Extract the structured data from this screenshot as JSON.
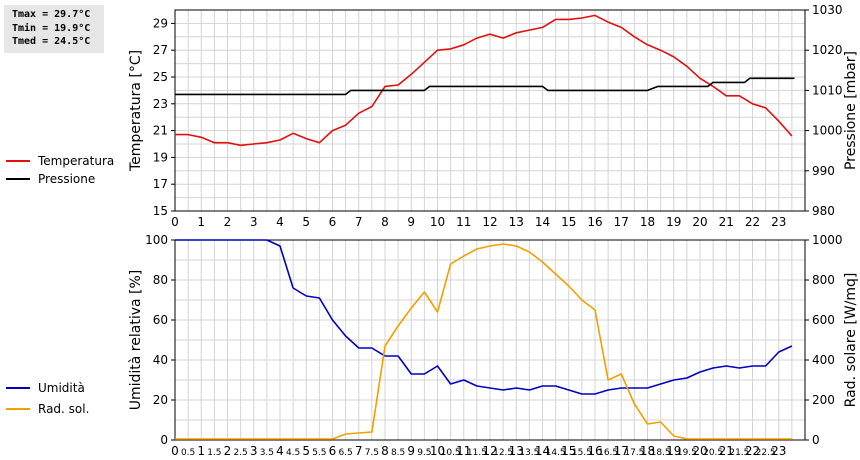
{
  "stats": {
    "tmax": "Tmax = 29.7°C",
    "tmin": "Tmin = 19.9°C",
    "tmed": "Tmed = 24.5°C"
  },
  "legend_top": [
    {
      "label": "Temperatura",
      "color": "#e01010"
    },
    {
      "label": "Pressione",
      "color": "#000000"
    }
  ],
  "legend_bottom": [
    {
      "label": "Umidità",
      "color": "#0000c0"
    },
    {
      "label": "Rad. sol.",
      "color": "#f0a000"
    }
  ],
  "chart_data": [
    {
      "type": "line",
      "ylabel": "Temperatura [°C]",
      "y2label": "Pressione [mbar]",
      "xlim": [
        0,
        24
      ],
      "ylim": [
        15,
        30
      ],
      "y2lim": [
        980,
        1030
      ],
      "xticks": [
        0,
        1,
        2,
        3,
        4,
        5,
        6,
        7,
        8,
        9,
        10,
        11,
        12,
        13,
        14,
        15,
        16,
        17,
        18,
        19,
        20,
        21,
        22,
        23
      ],
      "yticks": [
        15,
        17,
        19,
        21,
        23,
        25,
        27,
        29
      ],
      "y2ticks": [
        980,
        990,
        1000,
        1010,
        1020,
        1030
      ],
      "grid": true,
      "series": [
        {
          "name": "Temperatura",
          "axis": "left",
          "color": "#e01010",
          "x": [
            0,
            0.5,
            1,
            1.5,
            2,
            2.5,
            3,
            3.5,
            4,
            4.5,
            5,
            5.5,
            6,
            6.5,
            7,
            7.5,
            8,
            8.5,
            9,
            9.5,
            10,
            10.5,
            11,
            11.5,
            12,
            12.5,
            13,
            13.5,
            14,
            14.5,
            15,
            15.5,
            16,
            16.5,
            17,
            17.5,
            18,
            18.5,
            19,
            19.5,
            20,
            20.5,
            21,
            21.5,
            22,
            22.5,
            23,
            23.5
          ],
          "values": [
            20.7,
            20.7,
            20.5,
            20.1,
            20.1,
            19.9,
            20.0,
            20.1,
            20.3,
            20.8,
            20.4,
            20.1,
            21.0,
            21.4,
            22.3,
            22.8,
            24.3,
            24.4,
            25.2,
            26.1,
            27.0,
            27.1,
            27.4,
            27.9,
            28.2,
            27.9,
            28.3,
            28.5,
            28.7,
            29.3,
            29.3,
            29.4,
            29.6,
            29.1,
            28.7,
            28.0,
            27.4,
            27.0,
            26.5,
            25.8,
            24.9,
            24.3,
            23.6,
            23.6,
            23.0,
            22.7,
            21.7,
            20.6
          ]
        },
        {
          "name": "Pressione",
          "axis": "right",
          "color": "#000000",
          "x": [
            0,
            6.5,
            6.7,
            9.5,
            9.7,
            14,
            14.2,
            18,
            18.4,
            20.3,
            20.5,
            21.7,
            21.9,
            23.6
          ],
          "values": [
            1009,
            1009,
            1010,
            1010,
            1011,
            1011,
            1010,
            1010,
            1011,
            1011,
            1012,
            1012,
            1013,
            1013
          ]
        }
      ]
    },
    {
      "type": "line",
      "ylabel": "Umidità relativa [%]",
      "y2label": "Rad. solare [W/mq]",
      "xlim": [
        0,
        24
      ],
      "ylim": [
        0,
        100
      ],
      "y2lim": [
        0,
        1000
      ],
      "xticks": [
        0,
        0.5,
        1,
        1.5,
        2,
        2.5,
        3,
        3.5,
        4,
        4.5,
        5,
        5.5,
        6,
        6.5,
        7,
        7.5,
        8,
        8.5,
        9,
        9.5,
        10,
        10.5,
        11,
        11.5,
        12,
        12.5,
        13,
        13.5,
        14,
        14.5,
        15,
        15.5,
        16,
        16.5,
        17,
        17.5,
        18,
        18.5,
        19,
        19.5,
        20,
        20.5,
        21,
        21.5,
        22,
        22.5,
        23
      ],
      "yticks": [
        0,
        20,
        40,
        60,
        80,
        100
      ],
      "y2ticks": [
        0,
        200,
        400,
        600,
        800,
        1000
      ],
      "grid": true,
      "series": [
        {
          "name": "Umidità",
          "axis": "left",
          "color": "#0000c0",
          "x": [
            0,
            0.5,
            1,
            1.5,
            2,
            2.5,
            3,
            3.5,
            4,
            4.5,
            5,
            5.5,
            6,
            6.5,
            7,
            7.5,
            8,
            8.5,
            9,
            9.5,
            10,
            10.5,
            11,
            11.5,
            12,
            12.5,
            13,
            13.5,
            14,
            14.5,
            15,
            15.5,
            16,
            16.5,
            17,
            17.5,
            18,
            18.5,
            19,
            19.5,
            20,
            20.5,
            21,
            21.5,
            22,
            22.5,
            23,
            23.5
          ],
          "values": [
            100,
            100,
            100,
            100,
            100,
            100,
            100,
            100,
            97,
            76,
            72,
            71,
            60,
            52,
            46,
            46,
            42,
            42,
            33,
            33,
            37,
            28,
            30,
            27,
            26,
            25,
            26,
            25,
            27,
            27,
            25,
            23,
            23,
            25,
            26,
            26,
            26,
            28,
            30,
            31,
            34,
            36,
            37,
            36,
            37,
            37,
            44,
            47
          ]
        },
        {
          "name": "Rad. sol.",
          "axis": "right",
          "color": "#f0a000",
          "x": [
            0,
            0.5,
            1,
            1.5,
            2,
            2.5,
            3,
            3.5,
            4,
            4.5,
            5,
            5.5,
            6,
            6.5,
            7,
            7.5,
            8,
            8.5,
            9,
            9.5,
            10,
            10.5,
            11,
            11.5,
            12,
            12.5,
            13,
            13.5,
            14,
            14.5,
            15,
            15.5,
            16,
            16.5,
            17,
            17.5,
            18,
            18.5,
            19,
            19.5,
            20,
            20.5,
            21,
            21.5,
            22,
            22.5,
            23,
            23.5
          ],
          "values": [
            5,
            5,
            5,
            5,
            5,
            5,
            5,
            5,
            5,
            5,
            5,
            5,
            5,
            30,
            35,
            40,
            470,
            570,
            660,
            740,
            640,
            880,
            920,
            955,
            970,
            980,
            970,
            940,
            890,
            830,
            770,
            700,
            650,
            300,
            330,
            180,
            80,
            90,
            20,
            5,
            5,
            5,
            5,
            5,
            5,
            5,
            5,
            5
          ]
        }
      ]
    }
  ]
}
